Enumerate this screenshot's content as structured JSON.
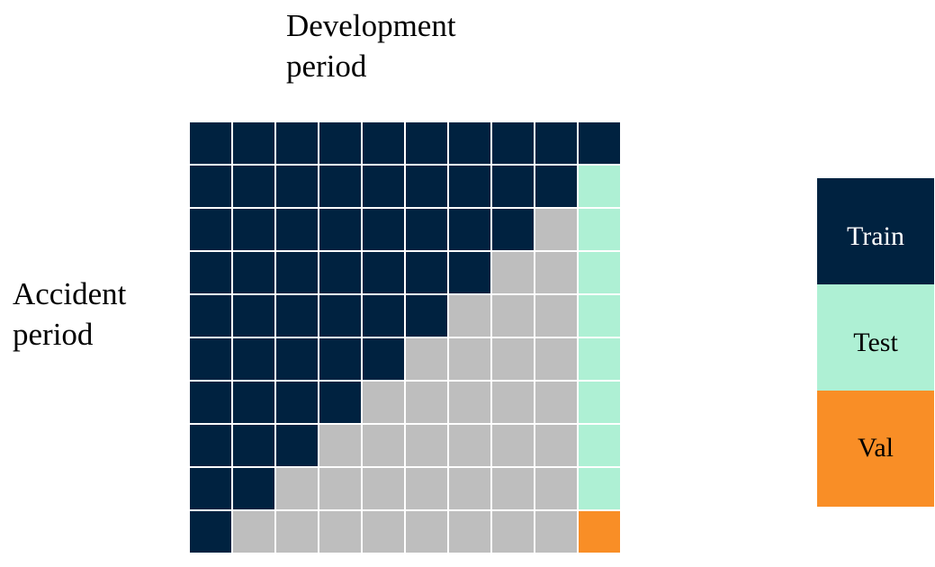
{
  "column_label": {
    "lines": [
      "Development",
      "period"
    ]
  },
  "row_label": {
    "lines": [
      "Accident",
      "period"
    ]
  },
  "legend": {
    "items": [
      "Train",
      "Test",
      "Val"
    ]
  }
}
